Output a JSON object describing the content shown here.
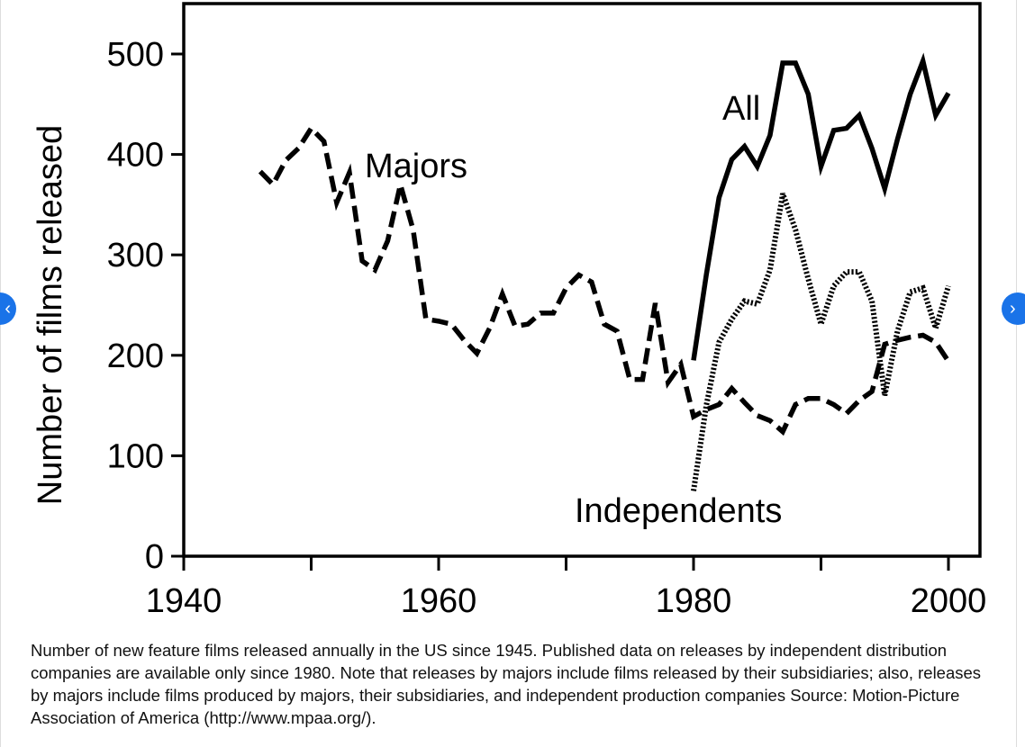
{
  "chart_data": {
    "type": "line",
    "title": "",
    "xlabel": "",
    "ylabel": "Number of films released",
    "xlim": [
      1940,
      2002
    ],
    "ylim": [
      0,
      550
    ],
    "x_ticks": [
      1940,
      1960,
      1980,
      2000
    ],
    "y_ticks": [
      0,
      100,
      200,
      300,
      400,
      500
    ],
    "grid": false,
    "series": [
      {
        "name": "Majors",
        "style": "dashed",
        "x": [
          1946,
          1947,
          1948,
          1949,
          1950,
          1951,
          1952,
          1953,
          1954,
          1955,
          1956,
          1957,
          1958,
          1959,
          1960,
          1961,
          1962,
          1963,
          1964,
          1965,
          1966,
          1967,
          1968,
          1969,
          1970,
          1971,
          1972,
          1973,
          1974,
          1975,
          1976,
          1977,
          1978,
          1979,
          1980,
          1981,
          1982,
          1983,
          1984,
          1985,
          1986,
          1987,
          1988,
          1989,
          1990,
          1991,
          1992,
          1993,
          1994,
          1995,
          1996,
          1997,
          1998,
          1999,
          2000
        ],
        "values": [
          383,
          370,
          394,
          406,
          426,
          413,
          352,
          382,
          294,
          285,
          314,
          370,
          325,
          236,
          234,
          231,
          215,
          202,
          227,
          261,
          229,
          231,
          242,
          242,
          267,
          280,
          273,
          231,
          224,
          176,
          176,
          252,
          173,
          191,
          139,
          146,
          151,
          167,
          153,
          140,
          135,
          124,
          151,
          157,
          157,
          151,
          142,
          155,
          164,
          211,
          215,
          218,
          220,
          213,
          194
        ]
      },
      {
        "name": "All",
        "style": "solid",
        "x": [
          1980,
          1981,
          1982,
          1983,
          1984,
          1985,
          1986,
          1987,
          1988,
          1989,
          1990,
          1991,
          1992,
          1993,
          1994,
          1995,
          1996,
          1997,
          1998,
          1999,
          2000
        ],
        "values": [
          195,
          280,
          357,
          395,
          408,
          388,
          419,
          491,
          491,
          460,
          388,
          424,
          426,
          439,
          406,
          366,
          415,
          460,
          493,
          439,
          461
        ]
      },
      {
        "name": "Independents",
        "style": "dotted",
        "x": [
          1980,
          1981,
          1982,
          1983,
          1984,
          1985,
          1986,
          1987,
          1988,
          1989,
          1990,
          1991,
          1992,
          1993,
          1994,
          1995,
          1996,
          1997,
          1998,
          1999,
          2000
        ],
        "values": [
          65,
          150,
          213,
          236,
          254,
          251,
          285,
          361,
          325,
          276,
          231,
          269,
          283,
          283,
          254,
          160,
          224,
          263,
          267,
          227,
          269
        ]
      }
    ],
    "annotations": [
      "Majors",
      "All",
      "Independents"
    ]
  },
  "caption": "Number of new feature films released annually in the US since 1945. Published data on releases by independent distribution companies are available only since 1980. Note that releases by majors include films released by their subsidiaries; also, releases by majors include films produced by majors, their subsidiaries, and independent production companies Source: Motion-Picture Association of America (http://www.mpaa.org/).",
  "nav": {
    "prev": "‹",
    "next": "›"
  }
}
